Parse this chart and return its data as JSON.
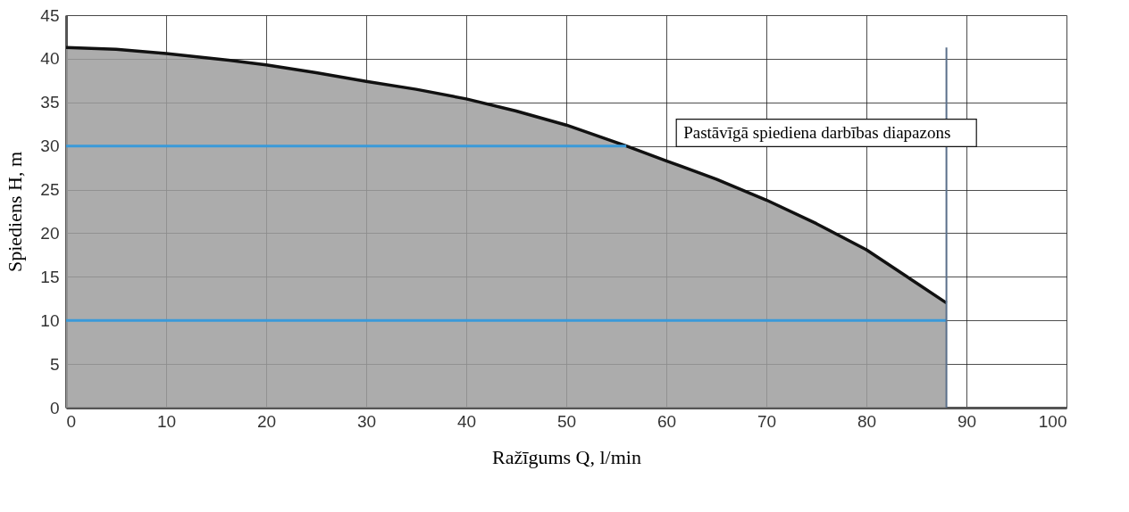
{
  "chart_data": {
    "type": "area",
    "xlabel": "Ražīgums Q, l/min",
    "ylabel": "Spiediens H, m",
    "x": [
      0,
      5,
      10,
      15,
      20,
      25,
      30,
      35,
      40,
      45,
      50,
      56,
      60,
      65,
      70,
      75,
      80,
      85,
      88
    ],
    "series": [
      {
        "color": "#9e9e9e",
        "values": [
          41.3,
          41.1,
          40.6,
          40.0,
          39.3,
          38.4,
          37.4,
          36.5,
          35.4,
          34.0,
          32.4,
          30.0,
          28.3,
          26.2,
          23.8,
          21.1,
          18.1,
          14.3,
          12.0
        ]
      }
    ],
    "xlim": [
      0,
      100
    ],
    "xticks": [
      0,
      10,
      20,
      30,
      40,
      50,
      60,
      70,
      80,
      90,
      100
    ],
    "ylim": [
      0,
      45
    ],
    "yticks": [
      0,
      5,
      10,
      15,
      20,
      25,
      30,
      35,
      40,
      45
    ],
    "grid": true,
    "ref_lines": [
      {
        "axis": "y",
        "value": 30,
        "color": "#3a9ad9"
      },
      {
        "axis": "y",
        "value": 10,
        "color": "#3a9ad9"
      },
      {
        "axis": "x",
        "value": 88,
        "color": "#5a6f8a"
      }
    ],
    "annotations": [
      "Pastāvīgā spiediena darbības diapazons"
    ]
  }
}
